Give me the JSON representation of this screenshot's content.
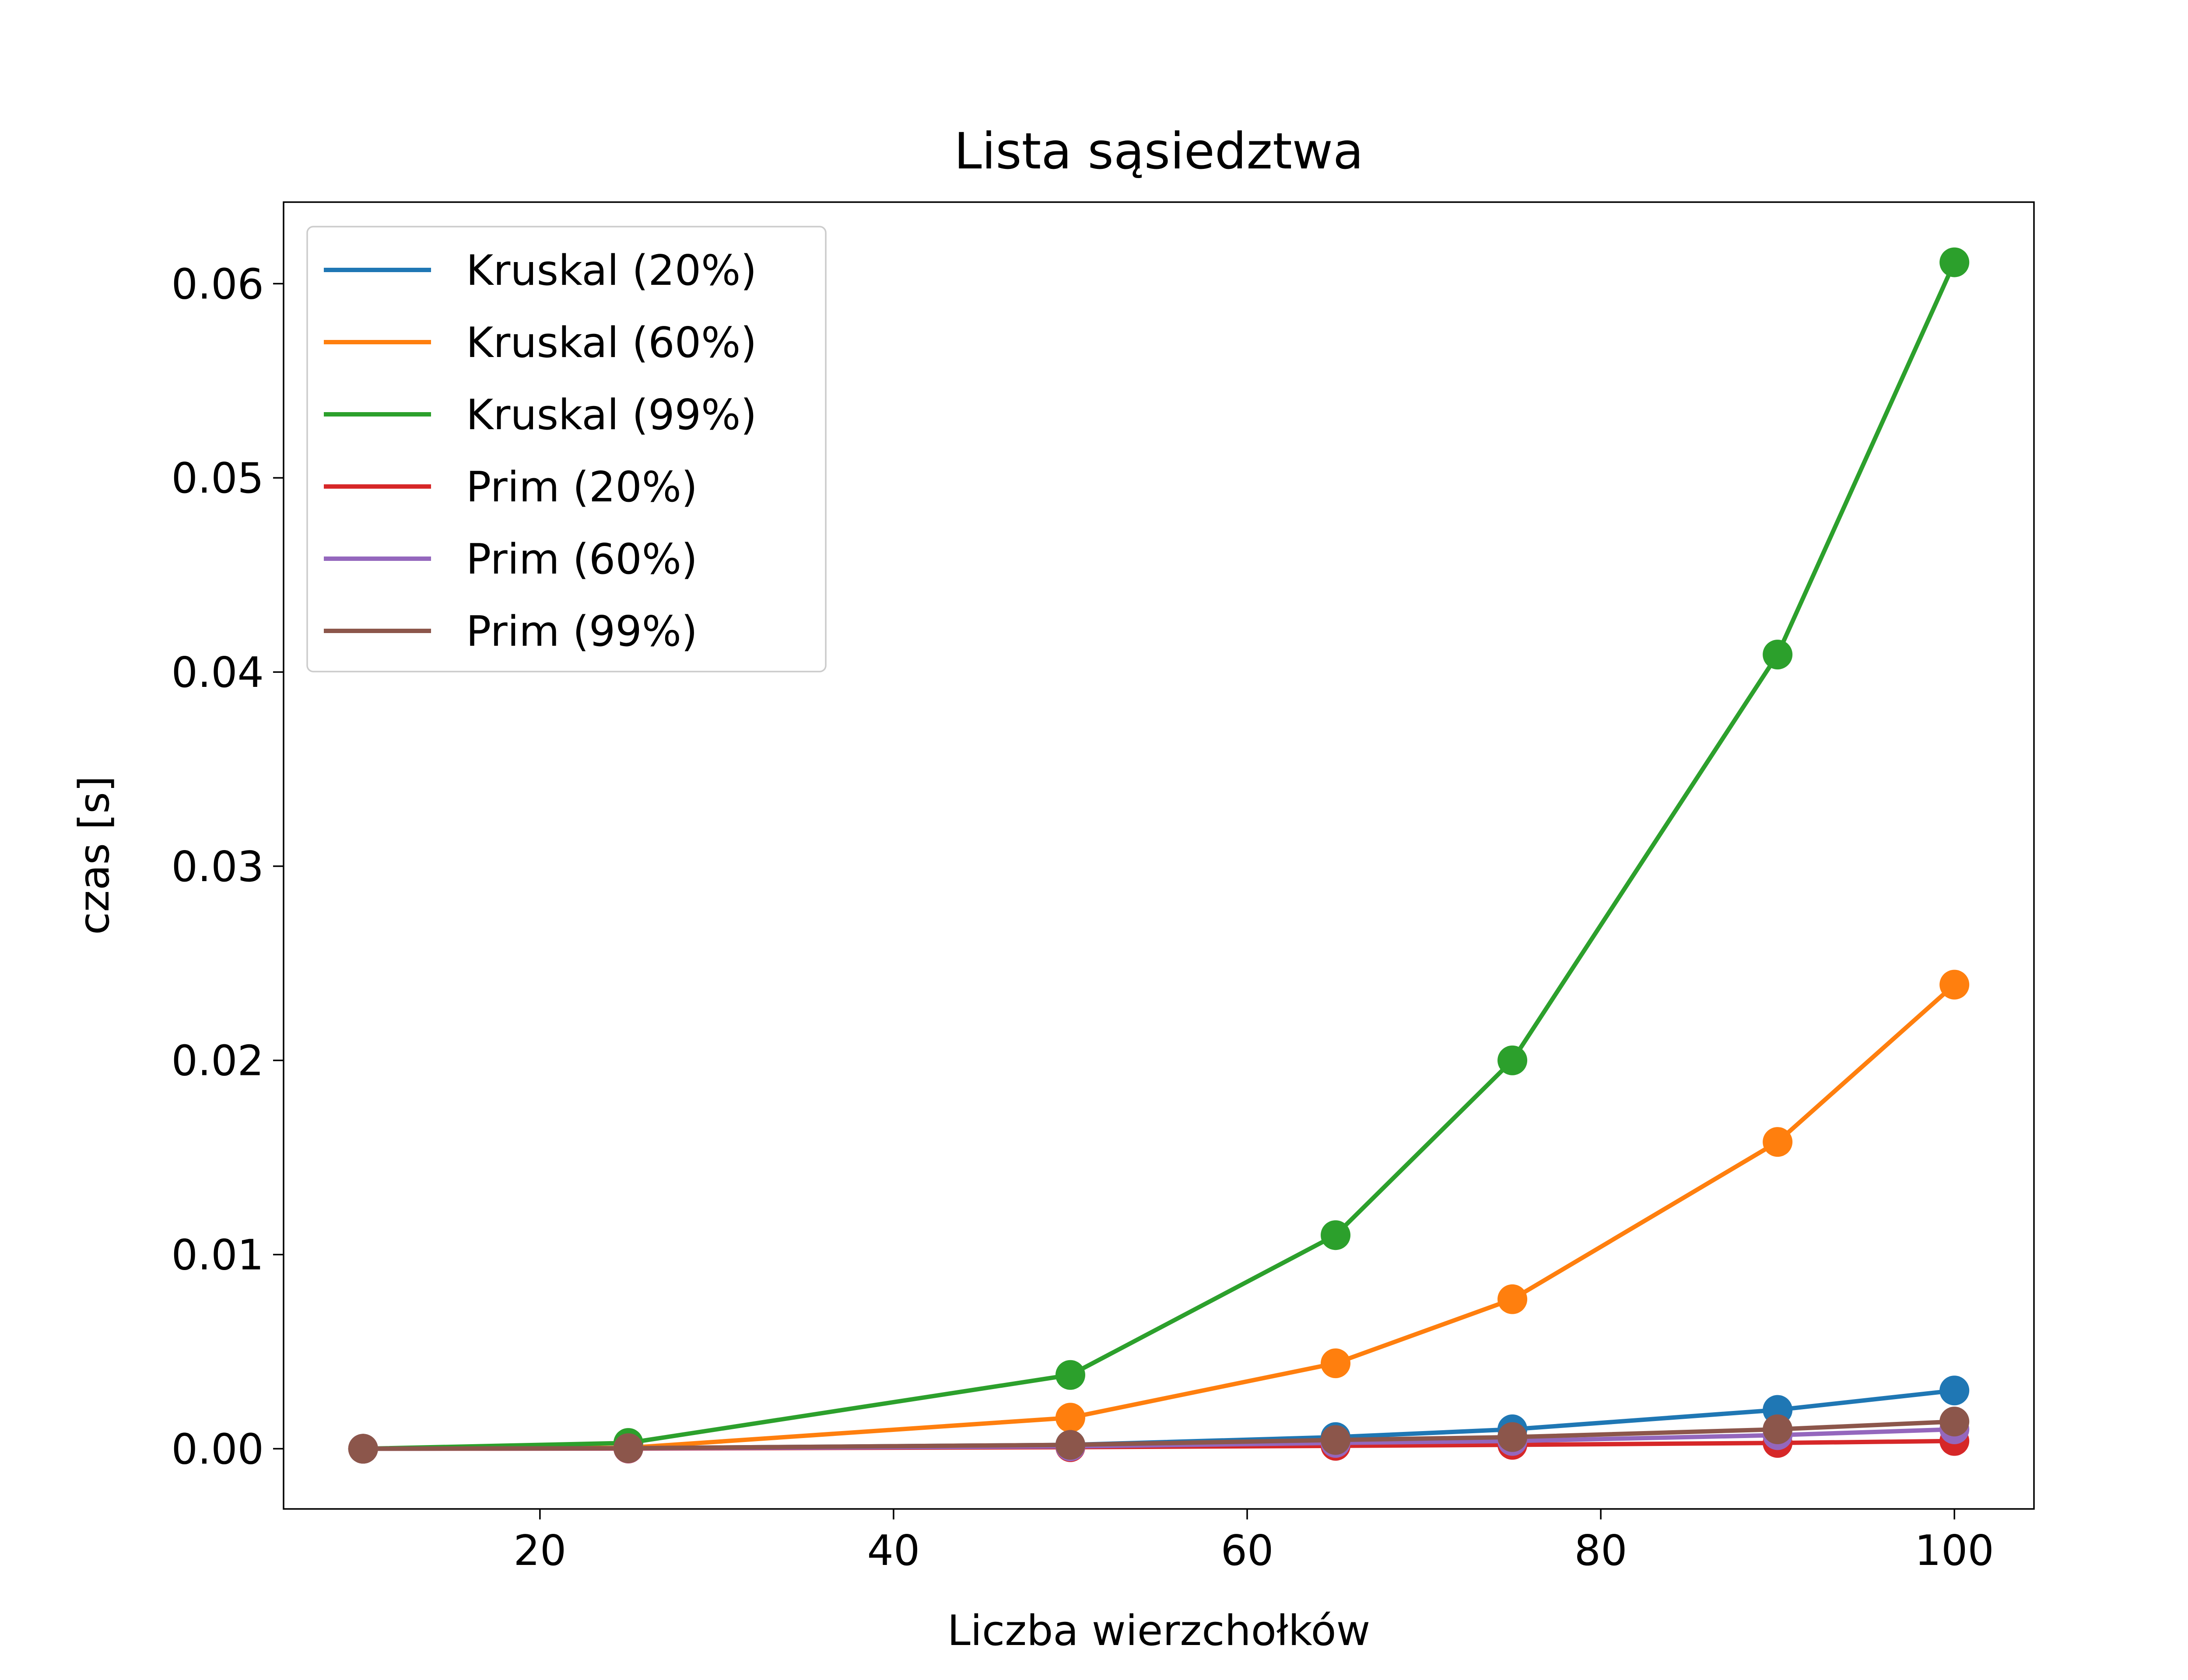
{
  "chart_data": {
    "type": "line",
    "title": "Lista sąsiedztwa",
    "xlabel": "Liczba wierzchołków",
    "ylabel": "czas [s]",
    "x": [
      10,
      25,
      50,
      65,
      75,
      90,
      100
    ],
    "xlim": [
      5.5,
      104.5
    ],
    "ylim": [
      -0.0031,
      0.0642
    ],
    "xticks": [
      20,
      40,
      60,
      80,
      100
    ],
    "yticks": [
      0.0,
      0.01,
      0.02,
      0.03,
      0.04,
      0.05,
      0.06
    ],
    "xtick_labels": [
      "20",
      "40",
      "60",
      "80",
      "100"
    ],
    "ytick_labels": [
      "0.00",
      "0.01",
      "0.02",
      "0.03",
      "0.04",
      "0.05",
      "0.06"
    ],
    "grid": false,
    "legend_position": "top-left",
    "markers": true,
    "series": [
      {
        "name": "Kruskal (20%)",
        "color": "#1f77b4",
        "values": [
          0.0,
          3e-05,
          0.0002,
          0.0006,
          0.001,
          0.002,
          0.003
        ]
      },
      {
        "name": "Kruskal (60%)",
        "color": "#ff7f0e",
        "values": [
          0.0,
          5e-05,
          0.0016,
          0.0044,
          0.0077,
          0.0158,
          0.0239
        ]
      },
      {
        "name": "Kruskal (99%)",
        "color": "#2ca02c",
        "values": [
          0.0,
          0.0003,
          0.0038,
          0.011,
          0.02,
          0.0409,
          0.0611
        ]
      },
      {
        "name": "Prim (20%)",
        "color": "#d62728",
        "values": [
          0.0,
          1e-05,
          8e-05,
          0.00015,
          0.0002,
          0.0003,
          0.0004
        ]
      },
      {
        "name": "Prim (60%)",
        "color": "#9467bd",
        "values": [
          0.0,
          2e-05,
          0.00012,
          0.0003,
          0.0004,
          0.0007,
          0.001
        ]
      },
      {
        "name": "Prim (99%)",
        "color": "#8c564b",
        "values": [
          0.0,
          3e-05,
          0.0002,
          0.00045,
          0.0006,
          0.001,
          0.0014
        ]
      }
    ]
  }
}
